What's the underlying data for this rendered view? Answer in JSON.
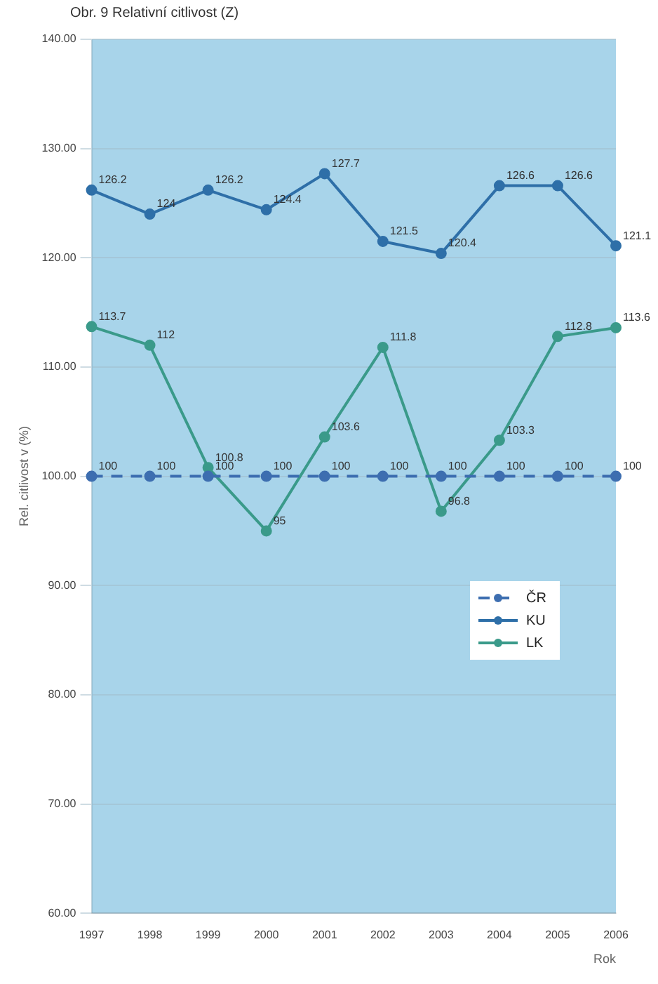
{
  "chart_data": {
    "type": "line",
    "title": "Obr. 9 Relativní citlivost (Z)",
    "xlabel": "Rok",
    "ylabel": "Rel. citlivost v (%)",
    "categories": [
      "1997",
      "1998",
      "1999",
      "2000",
      "2001",
      "2002",
      "2003",
      "2004",
      "2005",
      "2006"
    ],
    "series": [
      {
        "name": "ČR",
        "color": "#3d6eb0",
        "line_style": "dashed",
        "values": [
          100,
          100,
          100,
          100,
          100,
          100,
          100,
          100,
          100,
          100
        ]
      },
      {
        "name": "KU",
        "color": "#2e6fa8",
        "values": [
          126.2,
          124.0,
          126.2,
          124.4,
          127.7,
          121.5,
          120.4,
          126.6,
          126.6,
          121.1
        ]
      },
      {
        "name": "LK",
        "color": "#3a9a8a",
        "values": [
          113.7,
          112.0,
          100.8,
          95.0,
          103.6,
          111.8,
          96.8,
          103.3,
          112.8,
          113.6
        ]
      }
    ],
    "ylim": [
      60,
      140
    ],
    "yticks": [
      {
        "value": 60,
        "label": "60.00"
      },
      {
        "value": 70,
        "label": "70.00"
      },
      {
        "value": 80,
        "label": "80.00"
      },
      {
        "value": 90,
        "label": "90.00"
      },
      {
        "value": 100,
        "label": "100.00"
      },
      {
        "value": 110,
        "label": "110.00"
      },
      {
        "value": 120,
        "label": "120.00"
      },
      {
        "value": 130,
        "label": "130.00"
      },
      {
        "value": 140,
        "label": "140.00"
      }
    ],
    "grid": "y",
    "legend": "right",
    "marker": "circle",
    "data_labels": true
  }
}
